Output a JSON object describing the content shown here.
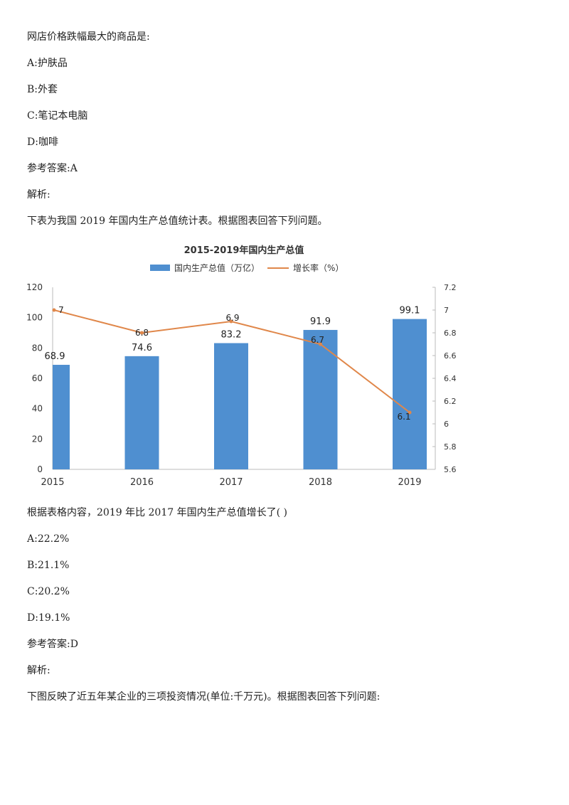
{
  "q1": {
    "question": "网店价格跌幅最大的商品是:",
    "options": [
      "A:护肤品",
      "B:外套",
      "C:笔记本电脑",
      "D:咖啡"
    ],
    "answer": "参考答案:A",
    "analysis": "解析:"
  },
  "intro2": "下表为我国 2019 年国内生产总值统计表。根据图表回答下列问题。",
  "q2": {
    "question": "根据表格内容，2019 年比 2017 年国内生产总值增长了( )",
    "options": [
      "A:22.2%",
      "B:21.1%",
      "C:20.2%",
      "D:19.1%"
    ],
    "answer": "参考答案:D",
    "analysis": "解析:"
  },
  "intro3": "下图反映了近五年某企业的三项投资情况(单位:千万元)。根据图表回答下列问题:",
  "chart_data": {
    "type": "bar+line",
    "title": "2015-2019年国内生产总值",
    "categories": [
      "2015",
      "2016",
      "2017",
      "2018",
      "2019"
    ],
    "series": [
      {
        "name": "国内生产总值（万亿）",
        "type": "bar",
        "axis": "left",
        "values": [
          68.9,
          74.6,
          83.2,
          91.9,
          99.1
        ],
        "labels": [
          "68.9",
          "74.6",
          "83.2",
          "91.9",
          "99.1"
        ],
        "color": "#4f8fd0"
      },
      {
        "name": "增长率（%）",
        "type": "line",
        "axis": "right",
        "values": [
          7.0,
          6.8,
          6.9,
          6.7,
          6.1
        ],
        "labels": [
          "7",
          "6.8",
          "6.9",
          "6.7",
          "6.1"
        ],
        "color": "#e0874a"
      }
    ],
    "y_left": {
      "range": [
        0,
        120
      ],
      "ticks": [
        "0",
        "20",
        "40",
        "60",
        "80",
        "100",
        "120"
      ]
    },
    "y_right": {
      "range": [
        5.6,
        7.2
      ],
      "ticks": [
        "5.6",
        "5.8",
        "6",
        "6.2",
        "6.4",
        "6.6",
        "6.8",
        "7",
        "7.2"
      ]
    },
    "legend": "top",
    "grid": false
  }
}
